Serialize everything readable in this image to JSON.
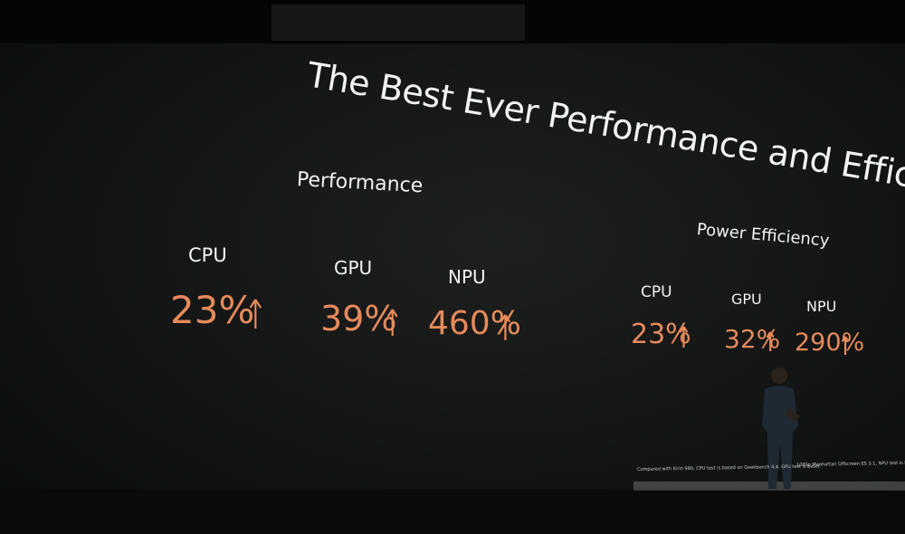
{
  "title": "The Best Ever Performance and Efficiency",
  "performance": {
    "heading": "Performance",
    "items": [
      {
        "label": "CPU",
        "value": "23%"
      },
      {
        "label": "GPU",
        "value": "39%"
      },
      {
        "label": "NPU",
        "value": "460%"
      }
    ]
  },
  "power_efficiency": {
    "heading": "Power Efficiency",
    "items": [
      {
        "label": "CPU",
        "value": "23%"
      },
      {
        "label": "GPU",
        "value": "32%"
      },
      {
        "label": "NPU",
        "value": "290%"
      }
    ]
  },
  "footnote": [
    "Compared with Kirin 980, CPU test is based on Geekbench 4.4, GPU test is basec",
    "1080p Manhattan Offscreen ES 3.1, NPU test is based on Mobilenet V1 (int8)"
  ]
}
